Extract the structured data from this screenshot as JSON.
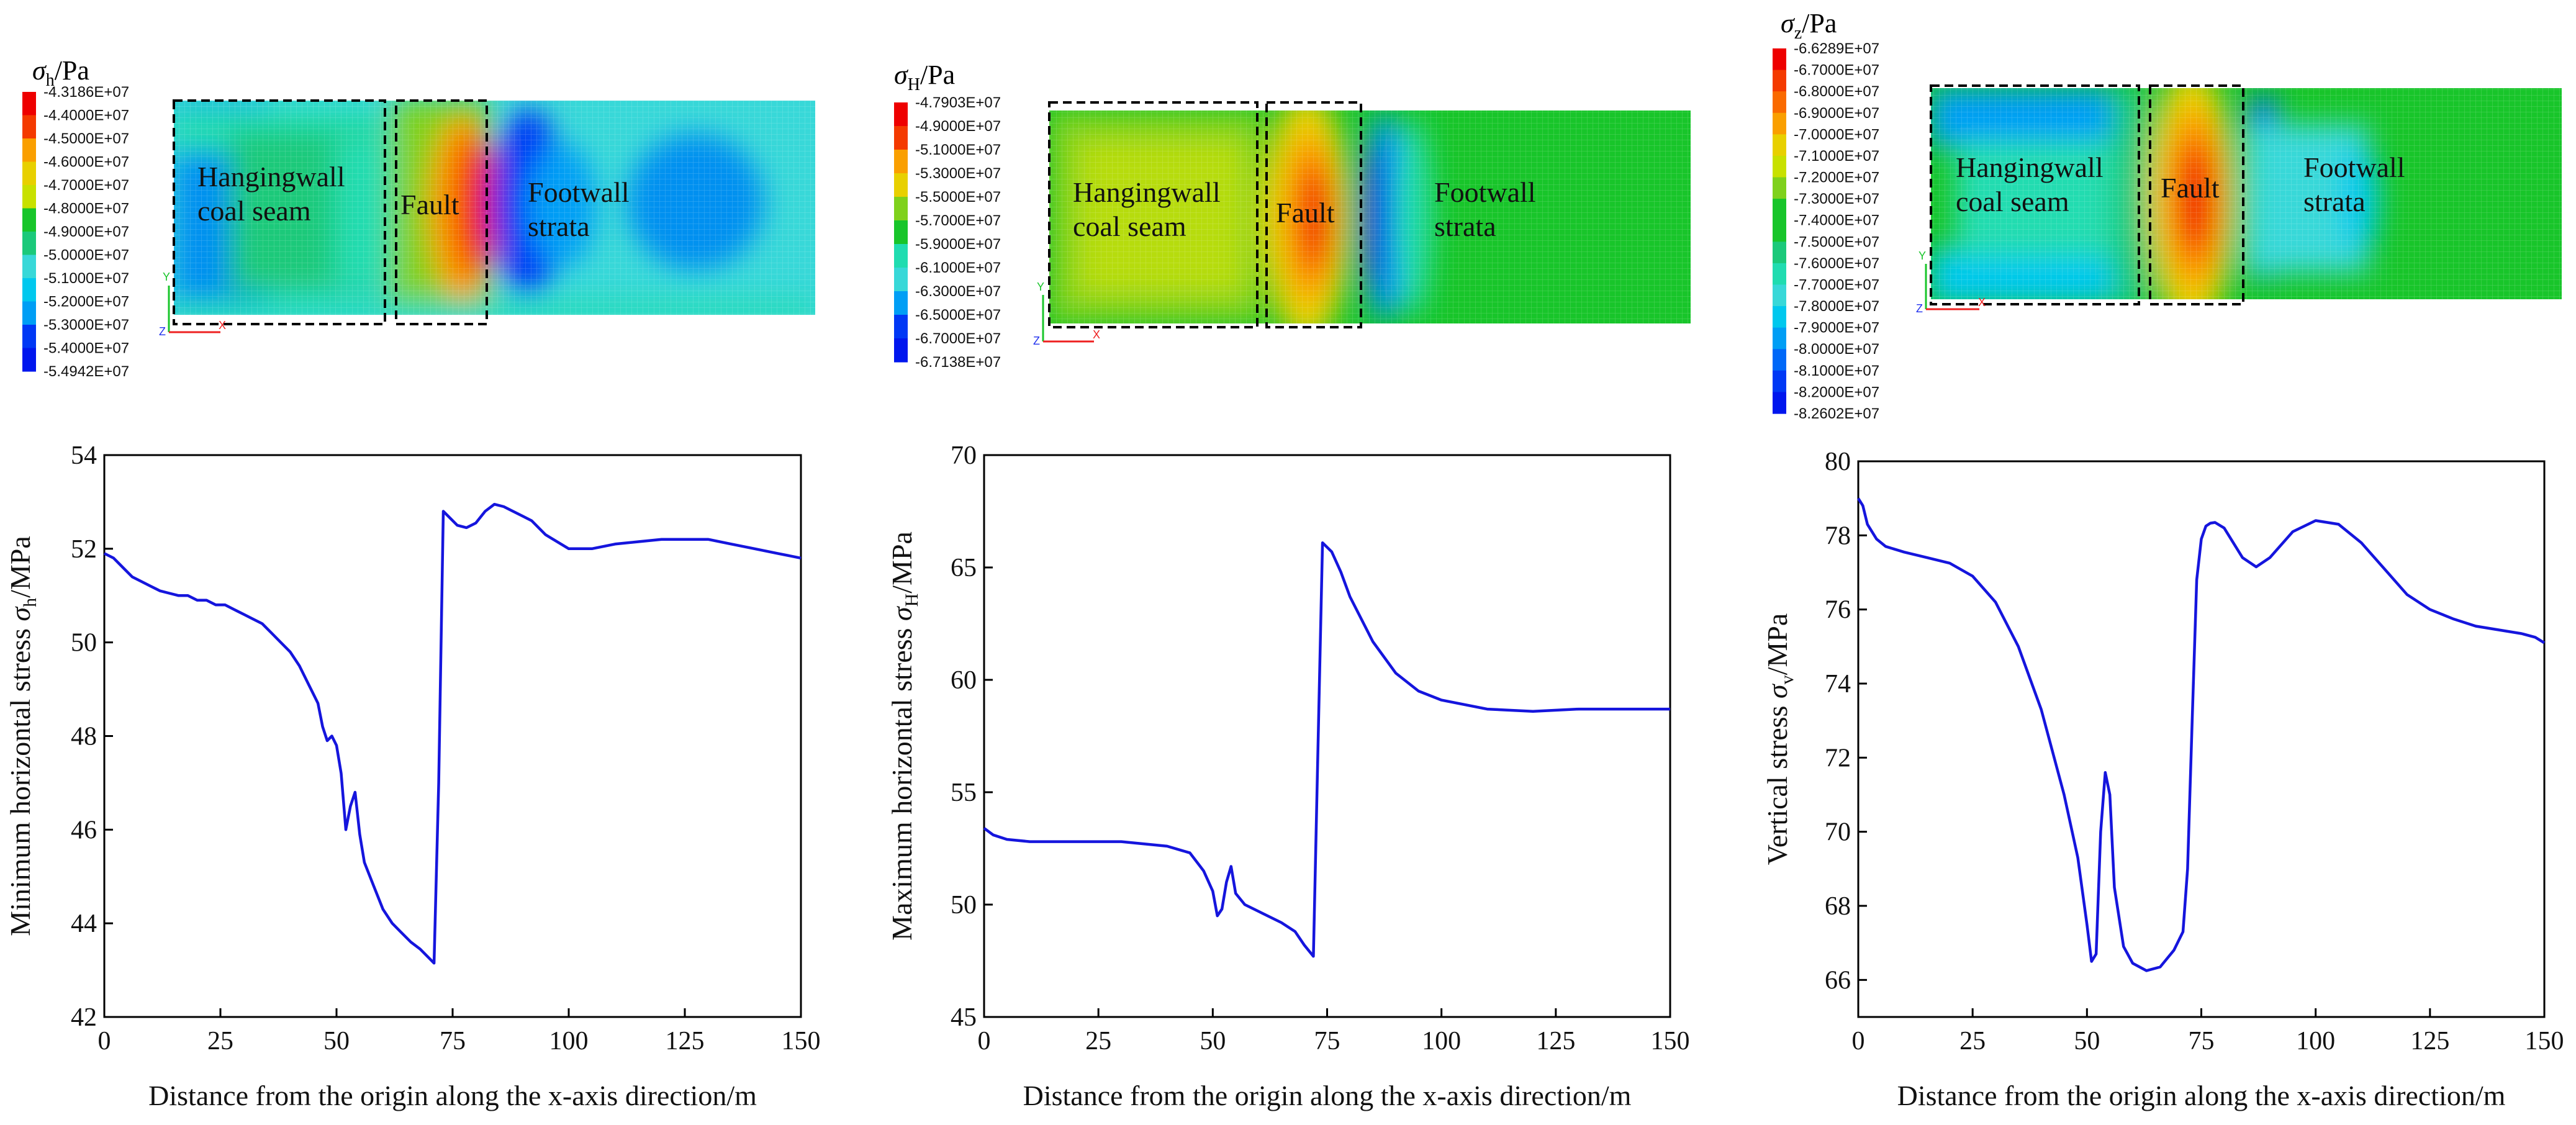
{
  "colors": {
    "curve": "#1515dd",
    "box": "#000000",
    "contour": [
      "#0016ee",
      "#0038f5",
      "#0068f8",
      "#009ef5",
      "#00c8ee",
      "#38d8d8",
      "#20dcb0",
      "#1bc97a",
      "#18c52a",
      "#7fd11c",
      "#c8e100",
      "#e8d000",
      "#fa9f00",
      "#fa6a00",
      "#f43a00",
      "#ee0000"
    ]
  },
  "panels": [
    {
      "id": "sigma_h",
      "legend": {
        "symbol": "σ",
        "subscript": "h",
        "unit": "/Pa",
        "entries": [
          "-4.3186E+07",
          "-4.4000E+07",
          "-4.5000E+07",
          "-4.6000E+07",
          "-4.7000E+07",
          "-4.8000E+07",
          "-4.9000E+07",
          "-5.0000E+07",
          "-5.1000E+07",
          "-5.2000E+07",
          "-5.3000E+07",
          "-5.4000E+07",
          "-5.4942E+07"
        ]
      },
      "regions": {
        "hangingwall": [
          "Hangingwall",
          "coal seam"
        ],
        "fault": "Fault",
        "footwall": [
          "Footwall",
          "strata"
        ]
      },
      "triad": {
        "x": "X",
        "y": "Y",
        "z": "Z"
      },
      "chart_data": {
        "type": "line",
        "title": "",
        "xlabel": "Distance from the origin along the x-axis direction/m",
        "ylabel_prefix": "Minimum horizontal stress ",
        "ylabel_symbol": "σ",
        "ylabel_sub": "h",
        "ylabel_unit": "/MPa",
        "xlim": [
          0,
          150
        ],
        "ylim": [
          42,
          54
        ],
        "xticks": [
          0,
          25,
          50,
          75,
          100,
          125,
          150
        ],
        "yticks": [
          42,
          44,
          46,
          48,
          50,
          52,
          54
        ],
        "x": [
          0,
          2,
          4,
          6,
          8,
          10,
          12,
          14,
          16,
          18,
          20,
          22,
          24,
          26,
          28,
          30,
          32,
          34,
          36,
          38,
          40,
          42,
          44,
          46,
          47,
          48,
          49,
          50,
          51,
          52,
          53,
          54,
          55,
          56,
          58,
          60,
          62,
          64,
          66,
          68,
          70,
          71,
          72,
          73,
          74,
          76,
          78,
          80,
          82,
          84,
          86,
          88,
          90,
          92,
          95,
          100,
          105,
          110,
          115,
          120,
          125,
          130,
          135,
          140,
          145,
          150
        ],
        "y": [
          51.9,
          51.8,
          51.6,
          51.4,
          51.3,
          51.2,
          51.1,
          51.05,
          51.0,
          51.0,
          50.9,
          50.9,
          50.8,
          50.8,
          50.7,
          50.6,
          50.5,
          50.4,
          50.2,
          50.0,
          49.8,
          49.5,
          49.1,
          48.7,
          48.2,
          47.9,
          48.0,
          47.8,
          47.2,
          46.0,
          46.5,
          46.8,
          45.9,
          45.3,
          44.8,
          44.3,
          44.0,
          43.8,
          43.6,
          43.45,
          43.25,
          43.15,
          47.0,
          52.8,
          52.7,
          52.5,
          52.45,
          52.55,
          52.8,
          52.95,
          52.9,
          52.8,
          52.7,
          52.6,
          52.3,
          52.0,
          52.0,
          52.1,
          52.15,
          52.2,
          52.2,
          52.2,
          52.1,
          52.0,
          51.9,
          51.8
        ]
      }
    },
    {
      "id": "sigma_H",
      "legend": {
        "symbol": "σ",
        "subscript": "H",
        "unit": "/Pa",
        "entries": [
          "-4.7903E+07",
          "-4.9000E+07",
          "-5.1000E+07",
          "-5.3000E+07",
          "-5.5000E+07",
          "-5.7000E+07",
          "-5.9000E+07",
          "-6.1000E+07",
          "-6.3000E+07",
          "-6.5000E+07",
          "-6.7000E+07",
          "-6.7138E+07"
        ]
      },
      "regions": {
        "hangingwall": [
          "Hangingwall",
          "coal seam"
        ],
        "fault": "Fault",
        "footwall": [
          "Footwall",
          "strata"
        ]
      },
      "triad": {
        "x": "X",
        "y": "Y",
        "z": "Z"
      },
      "chart_data": {
        "type": "line",
        "title": "",
        "xlabel": "Distance from the origin along the x-axis direction/m",
        "ylabel_prefix": "Maximum horizontal stress ",
        "ylabel_symbol": "σ",
        "ylabel_sub": "H",
        "ylabel_unit": "/MPa",
        "xlim": [
          0,
          150
        ],
        "ylim": [
          45,
          70
        ],
        "xticks": [
          0,
          25,
          50,
          75,
          100,
          125,
          150
        ],
        "yticks": [
          45,
          50,
          55,
          60,
          65,
          70
        ],
        "x": [
          0,
          2,
          5,
          10,
          15,
          20,
          25,
          30,
          35,
          40,
          45,
          48,
          50,
          51,
          52,
          53,
          54,
          55,
          57,
          60,
          65,
          68,
          70,
          72,
          73,
          74,
          76,
          78,
          80,
          85,
          90,
          95,
          100,
          110,
          120,
          130,
          140,
          150
        ],
        "y": [
          53.4,
          53.1,
          52.9,
          52.8,
          52.8,
          52.8,
          52.8,
          52.8,
          52.7,
          52.6,
          52.3,
          51.5,
          50.6,
          49.5,
          49.8,
          51.0,
          51.7,
          50.5,
          50.0,
          49.7,
          49.2,
          48.8,
          48.2,
          47.7,
          57.0,
          66.1,
          65.7,
          64.8,
          63.7,
          61.7,
          60.3,
          59.5,
          59.1,
          58.7,
          58.6,
          58.7,
          58.7,
          58.7
        ]
      }
    },
    {
      "id": "sigma_z",
      "legend": {
        "symbol": "σ",
        "subscript": "z",
        "unit": "/Pa",
        "entries": [
          "-6.6289E+07",
          "-6.7000E+07",
          "-6.8000E+07",
          "-6.9000E+07",
          "-7.0000E+07",
          "-7.1000E+07",
          "-7.2000E+07",
          "-7.3000E+07",
          "-7.4000E+07",
          "-7.5000E+07",
          "-7.6000E+07",
          "-7.7000E+07",
          "-7.8000E+07",
          "-7.9000E+07",
          "-8.0000E+07",
          "-8.1000E+07",
          "-8.2000E+07",
          "-8.2602E+07"
        ]
      },
      "regions": {
        "hangingwall": [
          "Hangingwall",
          "coal seam"
        ],
        "fault": "Fault",
        "footwall": [
          "Footwall",
          "strata"
        ]
      },
      "triad": {
        "x": "X",
        "y": "Y",
        "z": "Z"
      },
      "chart_data": {
        "type": "line",
        "title": "",
        "xlabel": "Distance from the origin along the x-axis direction/m",
        "ylabel_prefix": "Vertical stress ",
        "ylabel_symbol": "σ",
        "ylabel_sub": "v",
        "ylabel_unit": "/MPa",
        "xlim": [
          0,
          150
        ],
        "ylim": [
          65,
          80
        ],
        "xticks": [
          0,
          25,
          50,
          75,
          100,
          125,
          150
        ],
        "yticks": [
          66,
          68,
          70,
          72,
          74,
          76,
          78,
          80
        ],
        "x": [
          0,
          1,
          2,
          4,
          6,
          10,
          15,
          20,
          25,
          30,
          35,
          40,
          45,
          48,
          50,
          51,
          52,
          53,
          54,
          55,
          56,
          58,
          60,
          63,
          66,
          69,
          71,
          72,
          73,
          74,
          75,
          76,
          77,
          78,
          80,
          82,
          84,
          87,
          90,
          95,
          100,
          105,
          110,
          115,
          120,
          125,
          130,
          135,
          140,
          145,
          148,
          150
        ],
        "y": [
          79.0,
          78.8,
          78.3,
          77.9,
          77.7,
          77.55,
          77.4,
          77.25,
          76.9,
          76.2,
          75.0,
          73.3,
          71.0,
          69.3,
          67.5,
          66.5,
          66.7,
          70.0,
          71.6,
          71.0,
          68.5,
          66.9,
          66.45,
          66.25,
          66.35,
          66.8,
          67.3,
          69.0,
          73.0,
          76.8,
          77.9,
          78.25,
          78.33,
          78.35,
          78.2,
          77.8,
          77.4,
          77.15,
          77.4,
          78.1,
          78.4,
          78.3,
          77.8,
          77.1,
          76.4,
          76.0,
          75.75,
          75.55,
          75.45,
          75.35,
          75.25,
          75.1
        ]
      }
    }
  ]
}
